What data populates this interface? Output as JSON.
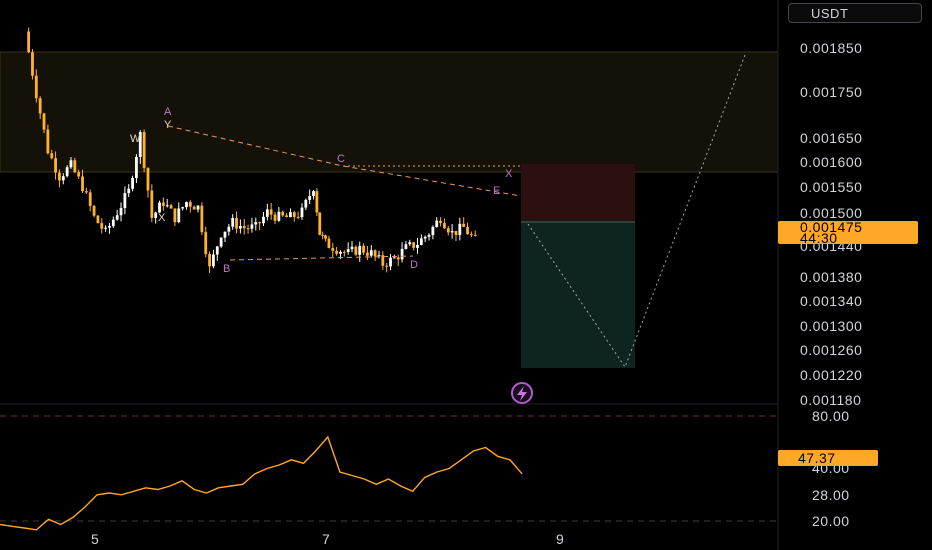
{
  "currency": "USDT",
  "price_axis": {
    "ticks": [
      "0.001850",
      "0.001750",
      "0.001650",
      "0.001600",
      "0.001550",
      "0.001500",
      "0.001440",
      "0.001380",
      "0.001340",
      "0.001300",
      "0.001260",
      "0.001220",
      "0.001180"
    ],
    "current_price": "0.001475",
    "countdown": "44:30"
  },
  "rsi_axis": {
    "ticks": [
      "80.00",
      "40.00",
      "28.00",
      "20.00"
    ],
    "current": "47.37"
  },
  "time_axis": [
    "5",
    "7",
    "9"
  ],
  "pattern_labels": [
    "A",
    "W",
    "Y",
    "X",
    "B",
    "C",
    "D",
    "E",
    "X"
  ],
  "colors": {
    "background": "#000000",
    "candle": "#ffb22e",
    "candle_alt": "#ffffff",
    "rsi_line": "#ffa726",
    "pattern": "#b879c8",
    "stop_zone": "#2c1010",
    "target_zone": "#0d2420",
    "price_tag": "#ffa726"
  },
  "chart_data": [
    {
      "type": "candlestick",
      "currency": "USDT",
      "x_ticks": [
        "5",
        "7",
        "9"
      ],
      "y_ticks": [
        0.00185,
        0.00175,
        0.00165,
        0.0016,
        0.00155,
        0.0015,
        0.00144,
        0.00138,
        0.00134,
        0.0013,
        0.00126,
        0.00122,
        0.00118
      ],
      "ylim": [
        0.00118,
        0.00189
      ],
      "last_price": 0.001475,
      "close_path": [
        [
          4.4,
          0.00188
        ],
        [
          4.5,
          0.00176
        ],
        [
          4.6,
          0.00165
        ],
        [
          4.7,
          0.0016
        ],
        [
          4.8,
          0.00162
        ],
        [
          4.9,
          0.00158
        ],
        [
          5.0,
          0.00152
        ],
        [
          5.1,
          0.00149
        ],
        [
          5.2,
          0.00153
        ],
        [
          5.3,
          0.00157
        ],
        [
          5.4,
          0.00168
        ],
        [
          5.5,
          0.00152
        ],
        [
          5.6,
          0.00155
        ],
        [
          5.7,
          0.00152
        ],
        [
          5.8,
          0.00155
        ],
        [
          5.9,
          0.00154
        ],
        [
          6.0,
          0.00142
        ],
        [
          6.1,
          0.00149
        ],
        [
          6.2,
          0.00151
        ],
        [
          6.3,
          0.0015
        ],
        [
          6.4,
          0.0015
        ],
        [
          6.5,
          0.00153
        ],
        [
          6.6,
          0.00152
        ],
        [
          6.7,
          0.00152
        ],
        [
          6.8,
          0.00153
        ],
        [
          6.9,
          0.00158
        ],
        [
          6.95,
          0.00149
        ],
        [
          7.0,
          0.00147
        ],
        [
          7.1,
          0.00146
        ],
        [
          7.2,
          0.00145
        ],
        [
          7.3,
          0.00146
        ],
        [
          7.4,
          0.00145
        ],
        [
          7.5,
          0.00143
        ],
        [
          7.6,
          0.00144
        ],
        [
          7.7,
          0.00146
        ],
        [
          7.8,
          0.00147
        ],
        [
          7.9,
          0.00149
        ],
        [
          8.0,
          0.00152
        ],
        [
          8.1,
          0.00149
        ],
        [
          8.2,
          0.0015
        ],
        [
          8.3,
          0.001475
        ]
      ],
      "pattern_points": [
        {
          "label": "A",
          "x": 5.4,
          "y": 0.00168
        },
        {
          "label": "B",
          "x": 6.0,
          "y": 0.00142
        },
        {
          "label": "C",
          "x": 6.95,
          "y": 0.00159
        },
        {
          "label": "D",
          "x": 7.4,
          "y": 0.00142
        },
        {
          "label": "E",
          "x": 8.1,
          "y": 0.00153
        }
      ],
      "short_position": {
        "entry": 0.001475,
        "stop": 0.0016,
        "target": 0.00123
      },
      "projection": [
        [
          8.3,
          0.001475
        ],
        [
          8.9,
          0.00123
        ],
        [
          9.5,
          0.00185
        ]
      ]
    },
    {
      "type": "line",
      "series": [
        {
          "name": "RSI",
          "values": [
            18,
            17,
            16,
            15,
            21,
            18,
            22,
            28,
            35,
            36,
            35,
            37,
            39,
            38,
            40,
            43,
            38,
            36,
            39,
            40,
            41,
            47,
            50,
            52,
            55,
            53,
            60,
            68,
            48,
            46,
            44,
            41,
            44,
            40,
            37,
            45,
            48,
            50,
            55,
            60,
            62,
            57,
            55,
            47
          ]
        }
      ],
      "ylim": [
        15,
        85
      ],
      "y_ticks": [
        80,
        40,
        28,
        20
      ],
      "current": 47.37
    }
  ]
}
